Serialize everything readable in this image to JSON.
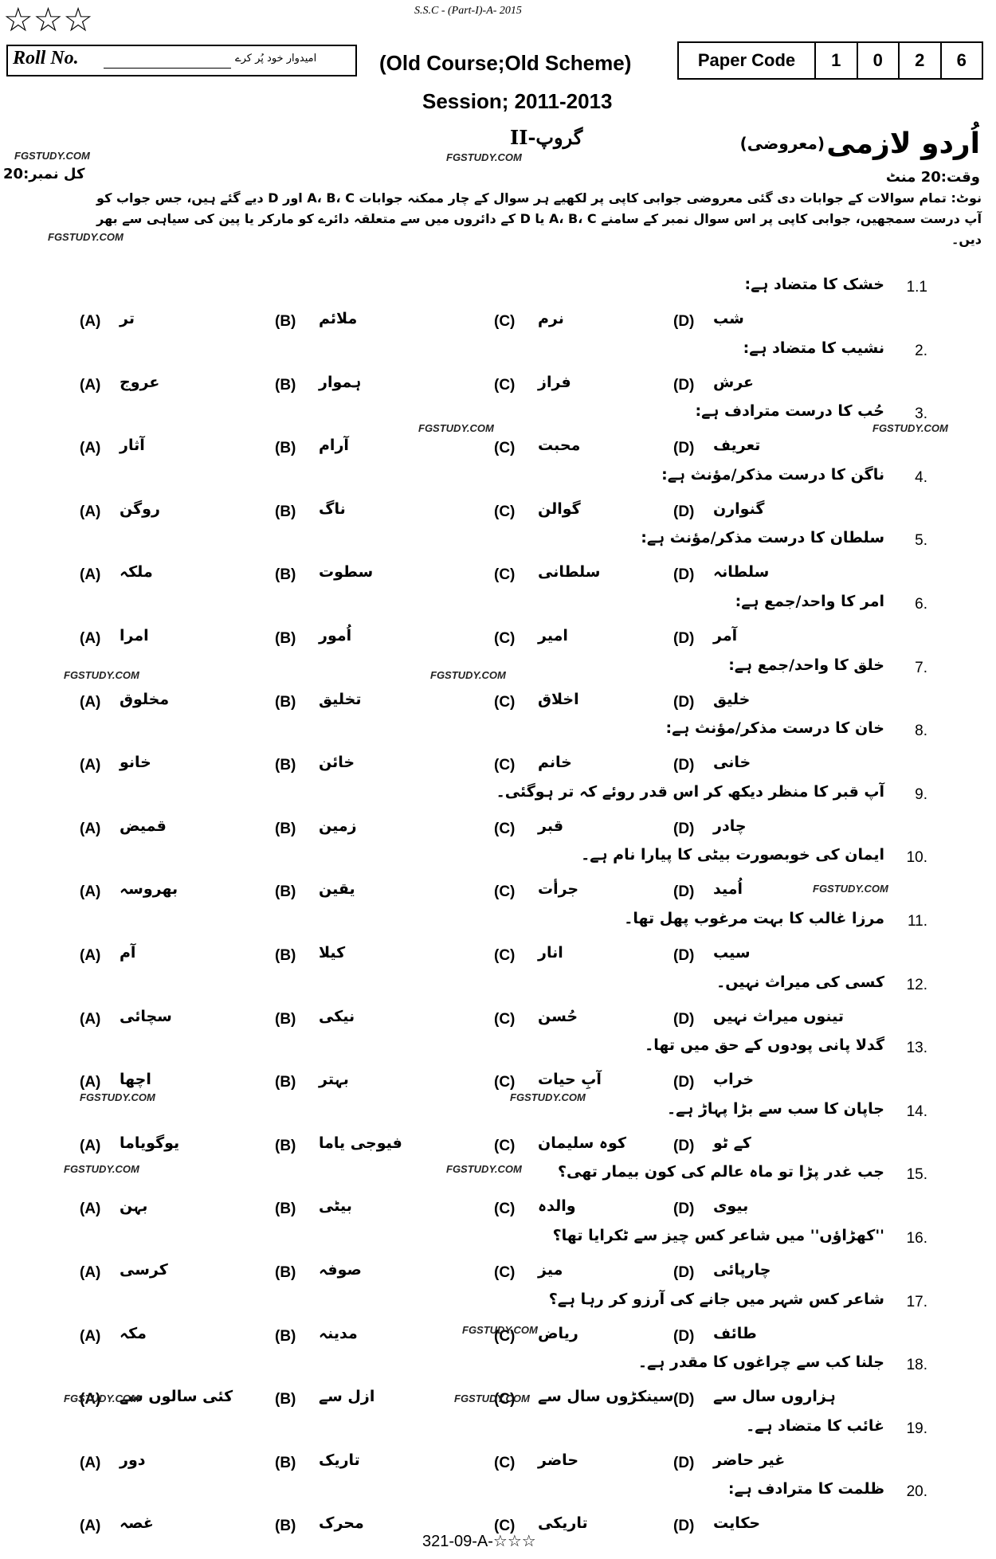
{
  "header": {
    "stars": "☆☆☆",
    "exam": "S.S.C - (Part-I)-A- 2015",
    "roll_no": "Roll No.",
    "roll_note": "امیدوار خود پُر کرے",
    "course": "(Old Course;Old Scheme)",
    "paper_code_label": "Paper Code",
    "paper_code": [
      1,
      0,
      2,
      6
    ],
    "session": "Session; 2011-2013",
    "group": "گروپ-II",
    "subject": "اُردو لازمی",
    "subject_type": "(معروضی)",
    "time": "وقت:20 منٹ",
    "marks": "کل نمبر:20"
  },
  "instructions": "نوٹ: تمام سوالات کے جوابات دی گئی معروضی جوابی کاپی پر لکھیے ہر سوال کے چار ممکنہ جوابات A، B، C اور D دیے گئے ہیں، جس جواب کو آپ درست سمجھیں، جوابی کاپی پر اس سوال نمبر کے سامنے A، B، C یا D کے دائروں میں سے متعلقہ دائرے کو مارکر یا پین کی سیاہی سے بھر دیں۔",
  "option_labels": [
    "(A)",
    "(B)",
    "(C)",
    "(D)"
  ],
  "questions": [
    {
      "number": "1.1",
      "prompt": "خشک کا متضاد ہے:",
      "options": [
        "تر",
        "ملائم",
        "نرم",
        "شب"
      ]
    },
    {
      "number": "2.",
      "prompt": "نشیب کا متضاد ہے:",
      "options": [
        "عروج",
        "ہموار",
        "فراز",
        "عرش"
      ]
    },
    {
      "number": "3.",
      "prompt": "حُب کا درست مترادف ہے:",
      "options": [
        "آثار",
        "آرام",
        "محبت",
        "تعریف"
      ]
    },
    {
      "number": "4.",
      "prompt": "ناگن کا درست مذکر/مؤنث ہے:",
      "options": [
        "روگن",
        "ناگ",
        "گوالن",
        "گنوارن"
      ]
    },
    {
      "number": "5.",
      "prompt": "سلطان کا درست مذکر/مؤنث ہے:",
      "options": [
        "ملکہ",
        "سطوت",
        "سلطانی",
        "سلطانہ"
      ]
    },
    {
      "number": "6.",
      "prompt": "امر کا واحد/جمع ہے:",
      "options": [
        "امرا",
        "اُمور",
        "امیر",
        "آمر"
      ]
    },
    {
      "number": "7.",
      "prompt": "خلق کا واحد/جمع ہے:",
      "options": [
        "مخلوق",
        "تخلیق",
        "اخلاق",
        "خلیق"
      ]
    },
    {
      "number": "8.",
      "prompt": "خان کا درست مذکر/مؤنث ہے:",
      "options": [
        "خانو",
        "خائن",
        "خانم",
        "خانی"
      ]
    },
    {
      "number": "9.",
      "prompt": "آپ قبر کا منظر دیکھ کر اس قدر روئے کہ تر ہوگئی۔",
      "options": [
        "قمیض",
        "زمین",
        "قبر",
        "چادر"
      ]
    },
    {
      "number": "10.",
      "prompt": "ایمان کی خوبصورت بیٹی کا پیارا نام ہے۔",
      "options": [
        "بھروسہ",
        "یقین",
        "جرأت",
        "اُمید"
      ]
    },
    {
      "number": "11.",
      "prompt": "مرزا غالب کا بہت مرغوب پھل تھا۔",
      "options": [
        "آم",
        "کیلا",
        "انار",
        "سیب"
      ]
    },
    {
      "number": "12.",
      "prompt": "کسی کی میراث نہیں۔",
      "options": [
        "سچائی",
        "نیکی",
        "حُسن",
        "تینوں میراث نہیں"
      ]
    },
    {
      "number": "13.",
      "prompt": "گدلا پانی پودوں کے حق میں تھا۔",
      "options": [
        "اچھا",
        "بہتر",
        "آبِ حیات",
        "خراب"
      ]
    },
    {
      "number": "14.",
      "prompt": "جاپان کا سب سے بڑا پہاڑ ہے۔",
      "options": [
        "یوگویاما",
        "فیوجی یاما",
        "کوہ سلیمان",
        "کے ٹو"
      ]
    },
    {
      "number": "15.",
      "prompt": "جب غدر پڑا تو ماہ عالم کی کون بیمار تھی؟",
      "options": [
        "بہن",
        "بیٹی",
        "والدہ",
        "بیوی"
      ]
    },
    {
      "number": "16.",
      "prompt": "''کھڑاؤں'' میں شاعر کس چیز سے ٹکرایا تھا؟",
      "options": [
        "کرسی",
        "صوفہ",
        "میز",
        "چارپائی"
      ]
    },
    {
      "number": "17.",
      "prompt": "شاعر کس شہر میں جانے کی آرزو کر رہا ہے؟",
      "options": [
        "مکہ",
        "مدینہ",
        "ریاض",
        "طائف"
      ]
    },
    {
      "number": "18.",
      "prompt": "جلنا کب سے چراغوں کا مقدر ہے۔",
      "options": [
        "کئی سالوں سے",
        "ازل سے",
        "سینکڑوں سال سے",
        "ہزاروں سال سے"
      ]
    },
    {
      "number": "19.",
      "prompt": "غائب کا متضاد ہے۔",
      "options": [
        "دور",
        "تاریک",
        "حاضر",
        "غیر حاضر"
      ]
    },
    {
      "number": "20.",
      "prompt": "ظلمت کا مترادف ہے:",
      "options": [
        "غصہ",
        "محرک",
        "تاریکی",
        "حکایت"
      ]
    }
  ],
  "footer": "321-09-A-☆☆☆",
  "watermark": "FGSTUDY.COM"
}
